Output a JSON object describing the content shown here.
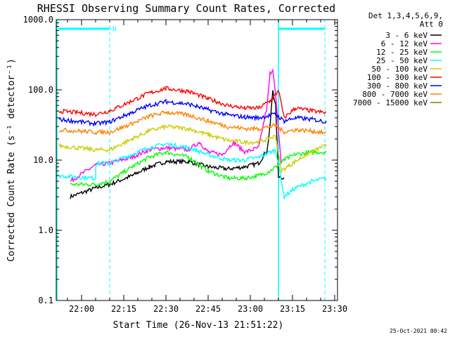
{
  "chart_data": {
    "type": "line",
    "title": "RHESSI Observing Summary Count Rates, Corrected",
    "xlabel": "Start Time (26-Nov-13 21:51:22)",
    "ylabel": "Corrected Count Rate (s⁻¹ detector⁻¹)",
    "yscale": "log",
    "ylim": [
      0.1,
      1000
    ],
    "xlim": [
      "21:51:22",
      "23:31:00"
    ],
    "xticks": [
      "22:00",
      "22:15",
      "22:30",
      "22:45",
      "23:00",
      "23:15",
      "23:30"
    ],
    "yticks": [
      "0.1",
      "1.0",
      "10.0",
      "100.0",
      "1000.0"
    ],
    "legend_header": [
      "Det 1,3,4,5,6,9,",
      "Att 0"
    ],
    "legend_position": "right",
    "flag_label": "N",
    "footer_date": "25-Oct-2021 00:42",
    "series": [
      {
        "name": "3 - 6 keV",
        "color": "#000000",
        "points": [
          [
            "21:56",
            3
          ],
          [
            "22:05",
            4
          ],
          [
            "22:10",
            4.5
          ],
          [
            "22:18",
            6
          ],
          [
            "22:24",
            8
          ],
          [
            "22:30",
            9.5
          ],
          [
            "22:38",
            9.5
          ],
          [
            "22:45",
            8
          ],
          [
            "22:52",
            7.5
          ],
          [
            "22:58",
            8
          ],
          [
            "23:03",
            9
          ],
          [
            "23:06",
            14
          ],
          [
            "23:07",
            30
          ],
          [
            "23:08",
            100
          ],
          [
            "23:09",
            60
          ],
          [
            "23:10",
            6
          ],
          [
            "23:12",
            5.5
          ]
        ]
      },
      {
        "name": "6 - 12 keV",
        "color": "#ff00ff",
        "points": [
          [
            "21:56",
            5
          ],
          [
            "22:05",
            8.5
          ],
          [
            "22:10",
            9
          ],
          [
            "22:18",
            11
          ],
          [
            "22:24",
            14
          ],
          [
            "22:30",
            15
          ],
          [
            "22:38",
            14
          ],
          [
            "22:42",
            18
          ],
          [
            "22:45",
            13
          ],
          [
            "22:50",
            12
          ],
          [
            "22:54",
            18
          ],
          [
            "22:58",
            13
          ],
          [
            "23:03",
            15
          ],
          [
            "23:06",
            60
          ],
          [
            "23:07",
            170
          ],
          [
            "23:08",
            200
          ],
          [
            "23:09",
            80
          ],
          [
            "23:11",
            9
          ]
        ]
      },
      {
        "name": "12 - 25 keV",
        "color": "#00ff00",
        "points": [
          [
            "21:56",
            4.5
          ],
          [
            "22:05",
            4.5
          ],
          [
            "22:10",
            5
          ],
          [
            "22:18",
            8
          ],
          [
            "22:24",
            11
          ],
          [
            "22:30",
            13
          ],
          [
            "22:38",
            11
          ],
          [
            "22:45",
            7
          ],
          [
            "22:52",
            5.5
          ],
          [
            "22:58",
            5.5
          ],
          [
            "23:03",
            6
          ],
          [
            "23:07",
            7
          ],
          [
            "23:09",
            8
          ],
          [
            "23:12",
            10
          ],
          [
            "23:16",
            12
          ],
          [
            "23:22",
            13
          ],
          [
            "23:27",
            13
          ]
        ]
      },
      {
        "name": "25 - 50 keV",
        "color": "#00ffff",
        "points": [
          [
            "21:52",
            6
          ],
          [
            "22:05",
            5.5
          ],
          [
            "22:05.1",
            9
          ],
          [
            "22:10",
            9
          ],
          [
            "22:18",
            12
          ],
          [
            "22:24",
            15
          ],
          [
            "22:30",
            17
          ],
          [
            "22:38",
            15
          ],
          [
            "22:45",
            12
          ],
          [
            "22:52",
            10
          ],
          [
            "22:58",
            10
          ],
          [
            "23:03",
            11
          ],
          [
            "23:09",
            14
          ],
          [
            "23:10",
            9
          ],
          [
            "23:12",
            3
          ],
          [
            "23:16",
            4
          ],
          [
            "23:22",
            5
          ],
          [
            "23:27",
            5.5
          ]
        ]
      },
      {
        "name": "50 - 100 keV",
        "color": "#cccc00",
        "points": [
          [
            "21:52",
            16
          ],
          [
            "22:05",
            14
          ],
          [
            "22:10",
            14
          ],
          [
            "22:18",
            20
          ],
          [
            "22:24",
            26
          ],
          [
            "22:30",
            30
          ],
          [
            "22:38",
            28
          ],
          [
            "22:45",
            23
          ],
          [
            "22:52",
            19
          ],
          [
            "22:58",
            18
          ],
          [
            "23:03",
            18
          ],
          [
            "23:09",
            22
          ],
          [
            "23:11",
            7
          ],
          [
            "23:15",
            9
          ],
          [
            "23:20",
            12
          ],
          [
            "23:25",
            15
          ],
          [
            "23:27",
            16
          ]
        ]
      },
      {
        "name": "100 - 300 keV",
        "color": "#ff0000",
        "points": [
          [
            "21:52",
            50
          ],
          [
            "22:05",
            45
          ],
          [
            "22:10",
            50
          ],
          [
            "22:18",
            70
          ],
          [
            "22:24",
            90
          ],
          [
            "22:30",
            105
          ],
          [
            "22:38",
            95
          ],
          [
            "22:45",
            75
          ],
          [
            "22:52",
            60
          ],
          [
            "22:58",
            55
          ],
          [
            "23:03",
            55
          ],
          [
            "23:07",
            70
          ],
          [
            "23:09",
            85
          ],
          [
            "23:10",
            100
          ],
          [
            "23:12",
            40
          ],
          [
            "23:16",
            55
          ],
          [
            "23:22",
            50
          ],
          [
            "23:27",
            47
          ]
        ]
      },
      {
        "name": "300 - 800 keV",
        "color": "#0000ff",
        "points": [
          [
            "21:52",
            38
          ],
          [
            "22:05",
            33
          ],
          [
            "22:10",
            35
          ],
          [
            "22:18",
            48
          ],
          [
            "22:24",
            60
          ],
          [
            "22:30",
            68
          ],
          [
            "22:38",
            63
          ],
          [
            "22:45",
            52
          ],
          [
            "22:52",
            44
          ],
          [
            "22:58",
            41
          ],
          [
            "23:03",
            40
          ],
          [
            "23:09",
            45
          ],
          [
            "23:12",
            36
          ],
          [
            "23:16",
            40
          ],
          [
            "23:22",
            38
          ],
          [
            "23:27",
            35
          ]
        ]
      },
      {
        "name": "800 - 7000 keV",
        "color": "#ff8000",
        "points": [
          [
            "21:52",
            27
          ],
          [
            "22:05",
            25
          ],
          [
            "22:10",
            25
          ],
          [
            "22:18",
            33
          ],
          [
            "22:24",
            42
          ],
          [
            "22:30",
            48
          ],
          [
            "22:38",
            44
          ],
          [
            "22:45",
            36
          ],
          [
            "22:52",
            30
          ],
          [
            "22:58",
            28
          ],
          [
            "23:03",
            28
          ],
          [
            "23:09",
            31
          ],
          [
            "23:12",
            25
          ],
          [
            "23:16",
            27
          ],
          [
            "23:22",
            26
          ],
          [
            "23:27",
            24
          ]
        ]
      },
      {
        "name": "7000 - 15000 keV",
        "color": "#808000",
        "points": []
      }
    ]
  }
}
